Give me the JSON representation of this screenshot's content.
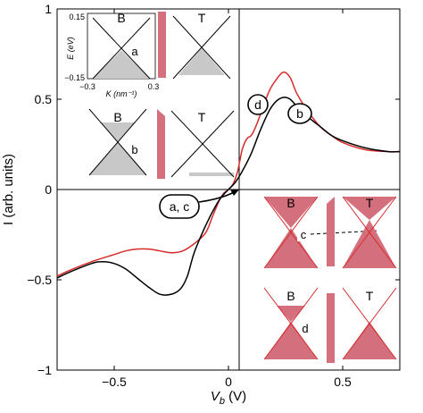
{
  "chart_data": {
    "type": "line",
    "xlabel_main": "V",
    "xlabel_sub": "b",
    "xlabel_unit": " (V)",
    "ylabel": "I (arb. units)",
    "xlim": [
      -0.75,
      0.75
    ],
    "ylim": [
      -1,
      1
    ],
    "x_ticks": [
      -0.5,
      0,
      0.5
    ],
    "x_tick_labels": [
      "−0.5",
      "0",
      "0.5"
    ],
    "y_ticks": [
      -1,
      -0.5,
      0,
      0.5,
      1
    ],
    "y_tick_labels": [
      "−1",
      "−0.5",
      "0",
      "0.5",
      "1"
    ],
    "colors": {
      "red_series": "#d62b2b",
      "black_series": "#000000",
      "inset_fill": "#d4707e",
      "inset_gray": "#c8c8c8"
    },
    "series": [
      {
        "color": "#d62b2b",
        "x": [
          -0.75,
          -0.7,
          -0.6,
          -0.5,
          -0.45,
          -0.4,
          -0.35,
          -0.3,
          -0.25,
          -0.2,
          -0.15,
          -0.1,
          -0.07,
          -0.04,
          -0.02,
          0,
          0.02,
          0.04,
          0.06,
          0.08,
          0.1,
          0.12,
          0.15,
          0.18,
          0.21,
          0.24,
          0.27,
          0.3,
          0.35,
          0.4,
          0.45,
          0.5,
          0.6,
          0.7,
          0.75
        ],
        "y": [
          -0.48,
          -0.45,
          -0.4,
          -0.36,
          -0.34,
          -0.33,
          -0.33,
          -0.34,
          -0.35,
          -0.34,
          -0.3,
          -0.24,
          -0.15,
          -0.06,
          -0.02,
          0,
          0.03,
          0.1,
          0.22,
          0.28,
          0.3,
          0.35,
          0.45,
          0.55,
          0.61,
          0.65,
          0.62,
          0.53,
          0.43,
          0.35,
          0.3,
          0.26,
          0.22,
          0.21,
          0.21
        ]
      },
      {
        "color": "#000000",
        "x": [
          -0.75,
          -0.7,
          -0.6,
          -0.55,
          -0.5,
          -0.45,
          -0.4,
          -0.35,
          -0.3,
          -0.25,
          -0.21,
          -0.18,
          -0.15,
          -0.1,
          -0.06,
          -0.03,
          0,
          0.03,
          0.06,
          0.1,
          0.14,
          0.18,
          0.21,
          0.24,
          0.27,
          0.3,
          0.35,
          0.4,
          0.45,
          0.5,
          0.6,
          0.7,
          0.75
        ],
        "y": [
          -0.49,
          -0.46,
          -0.41,
          -0.4,
          -0.41,
          -0.44,
          -0.49,
          -0.54,
          -0.58,
          -0.58,
          -0.55,
          -0.48,
          -0.35,
          -0.2,
          -0.1,
          -0.04,
          0,
          0.04,
          0.1,
          0.2,
          0.33,
          0.44,
          0.49,
          0.51,
          0.5,
          0.46,
          0.4,
          0.35,
          0.3,
          0.27,
          0.23,
          0.21,
          0.21
        ]
      }
    ],
    "annotations": [
      {
        "text": "a, c",
        "x": -0.35,
        "y": -0.09
      },
      {
        "text": "d",
        "x": 0.09,
        "y": 0.48
      },
      {
        "text": "b",
        "x": 0.29,
        "y": 0.42
      }
    ],
    "grid": false,
    "legend": "none"
  },
  "inset_top_left": {
    "ylabel": "E (eV)",
    "xlabel": "K (nm⁻¹)",
    "y_tick_top": "0.15",
    "y_tick_bottom": "−0.15",
    "x_tick_left": "−0.3",
    "x_tick_right": "0.3",
    "panel_row1_left": "B",
    "panel_row1_right": "T",
    "panel_row1_mark": "a",
    "panel_row2_left": "B",
    "panel_row2_right": "T",
    "panel_row2_mark": "b"
  },
  "inset_bottom_right": {
    "panel_row1_left": "B",
    "panel_row1_right": "T",
    "panel_row1_mark": "c",
    "panel_row2_left": "B",
    "panel_row2_right": "T",
    "panel_row2_mark": "d"
  }
}
